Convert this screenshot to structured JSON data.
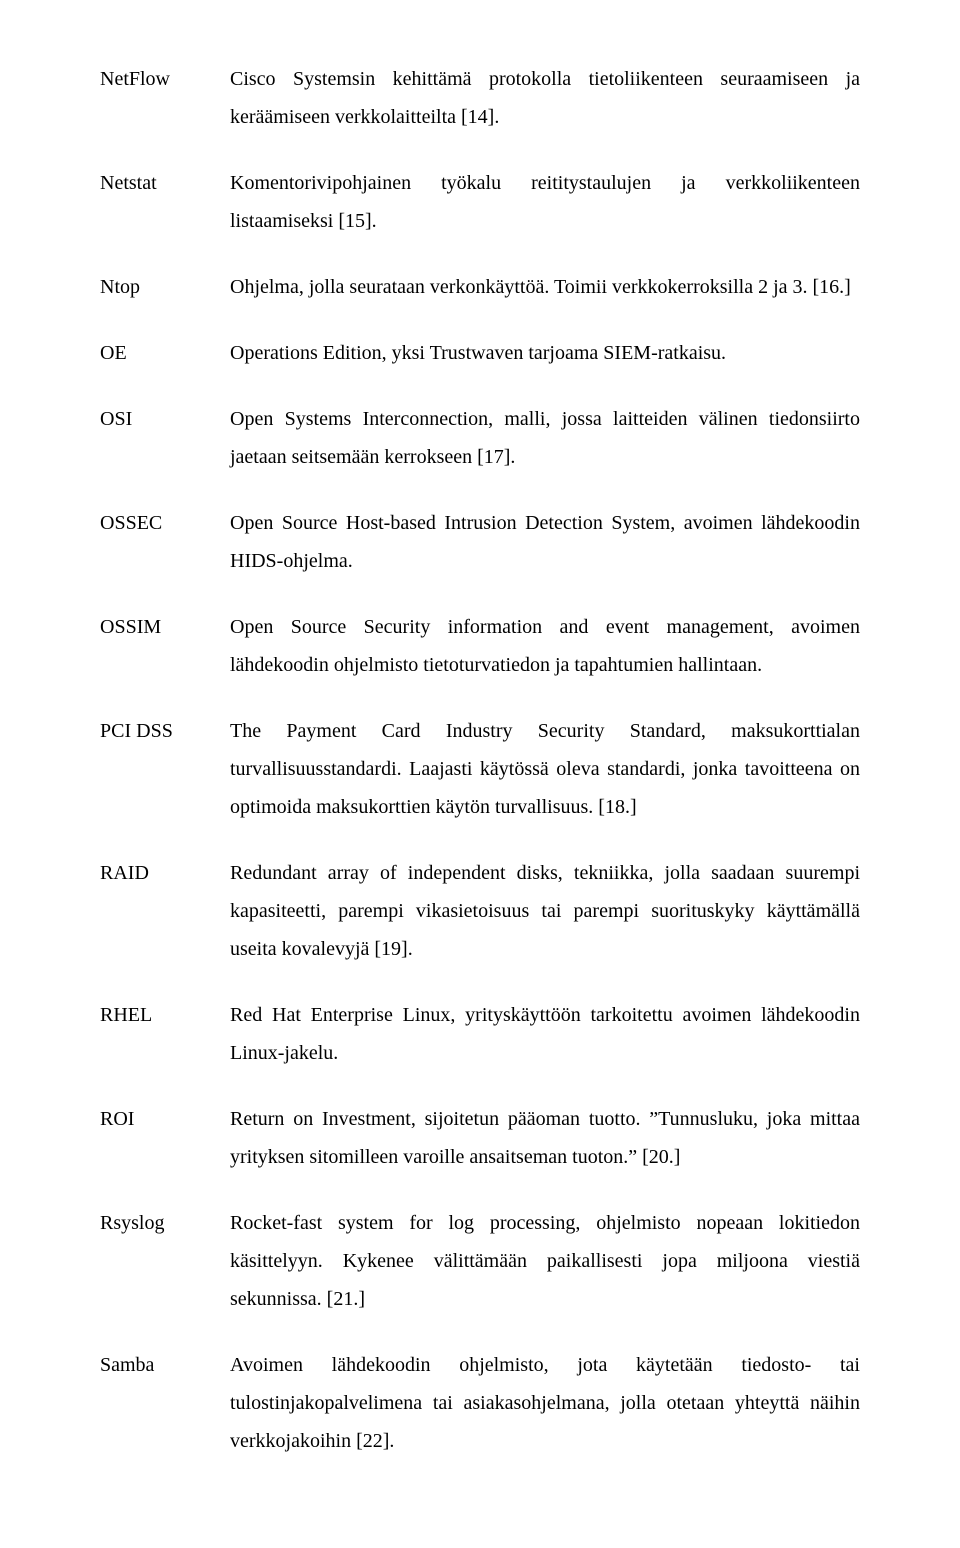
{
  "font": {
    "family": "Times New Roman",
    "size_pt": 20,
    "line_height": 1.9,
    "color": "#000000"
  },
  "background_color": "#ffffff",
  "entries": [
    {
      "term": "NetFlow",
      "definition": "Cisco Systemsin kehittämä protokolla tietoliikenteen seuraamiseen ja keräämiseen verkkolaitteilta [14]."
    },
    {
      "term": "Netstat",
      "definition": "Komentorivipohjainen työkalu reititystaulujen ja verkkoliikenteen listaamiseksi [15]."
    },
    {
      "term": "Ntop",
      "definition": "Ohjelma, jolla seurataan verkonkäyttöä. Toimii verkkokerroksilla 2 ja 3. [16.]"
    },
    {
      "term": "OE",
      "definition": "Operations Edition, yksi Trustwaven tarjoama SIEM-ratkaisu."
    },
    {
      "term": "OSI",
      "definition": "Open Systems Interconnection, malli, jossa laitteiden välinen tiedonsiirto jaetaan seitsemään kerrokseen [17]."
    },
    {
      "term": "OSSEC",
      "definition": "Open Source Host-based Intrusion Detection System, avoimen lähdekoodin HIDS-ohjelma."
    },
    {
      "term": "OSSIM",
      "definition": "Open Source Security information and event management, avoimen lähdekoodin ohjelmisto tietoturvatiedon ja tapahtumien hallintaan."
    },
    {
      "term": "PCI DSS",
      "definition": "The Payment Card Industry Security Standard, maksukorttialan turvallisuusstandardi. Laajasti käytössä oleva standardi, jonka tavoitteena on optimoida maksukorttien käytön turvallisuus. [18.]"
    },
    {
      "term": "RAID",
      "definition": "Redundant array of independent disks, tekniikka, jolla saadaan suurempi kapasiteetti, parempi vikasietoisuus tai parempi suorituskyky käyttämällä useita kovalevyjä [19]."
    },
    {
      "term": "RHEL",
      "definition": "Red Hat Enterprise Linux, yrityskäyttöön tarkoitettu avoimen lähdekoodin Linux-jakelu."
    },
    {
      "term": "ROI",
      "definition": "Return on Investment, sijoitetun pääoman tuotto. ”Tunnusluku, joka mittaa yrityksen sitomilleen varoille ansaitseman tuoton.” [20.]"
    },
    {
      "term": "Rsyslog",
      "definition": "Rocket-fast system for log processing, ohjelmisto nopeaan lokitiedon käsittelyyn. Kykenee välittämään paikallisesti jopa miljoona viestiä sekunnissa. [21.]"
    },
    {
      "term": "Samba",
      "definition": "Avoimen lähdekoodin ohjelmisto, jota käytetään tiedosto- tai tulostinjakopalvelimena tai asiakasohjelmana, jolla otetaan yhteyttä näihin verkkojakoihin [22]."
    }
  ]
}
